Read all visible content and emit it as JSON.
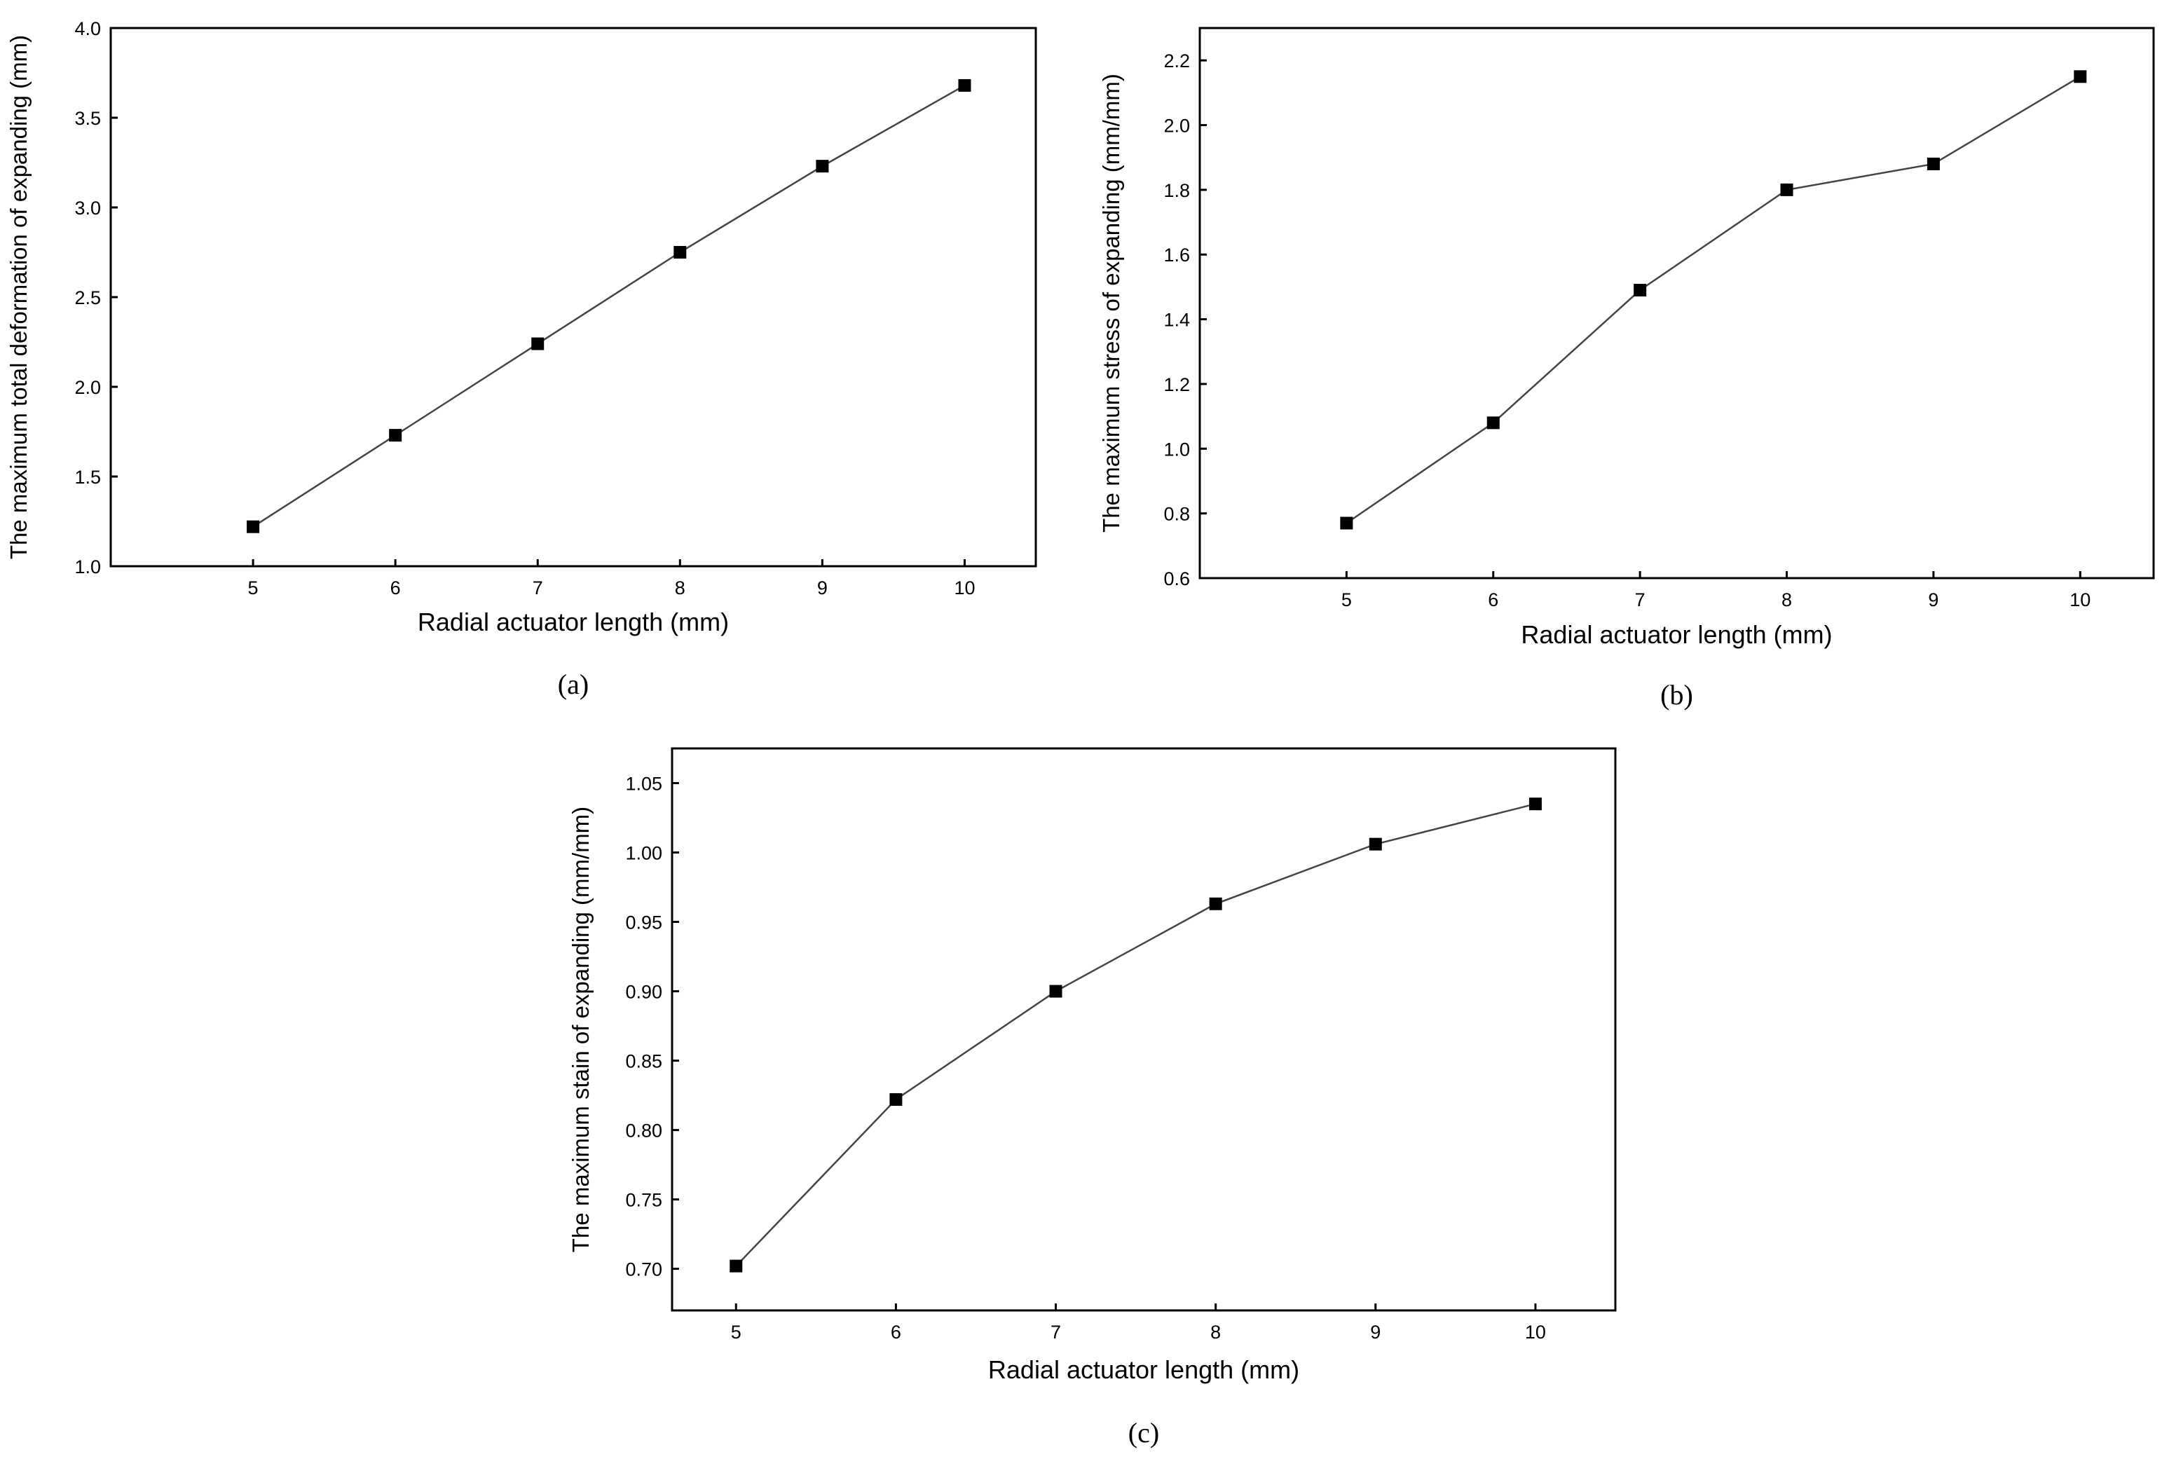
{
  "chart_data": [
    {
      "type": "line",
      "panel_label": "(a)",
      "xlabel": "Radial actuator length (mm)",
      "ylabel": "The maximum total deformation of  expanding (mm)",
      "x": [
        5,
        6,
        7,
        8,
        9,
        10
      ],
      "xlim": [
        4,
        10.5
      ],
      "xticks": [
        5,
        6,
        7,
        8,
        9,
        10
      ],
      "xtick_labels": [
        "5",
        "6",
        "7",
        "8",
        "9",
        "10"
      ],
      "ylim": [
        1.0,
        4.0
      ],
      "yticks": [
        1.0,
        1.5,
        2.0,
        2.5,
        3.0,
        3.5,
        4.0
      ],
      "ytick_labels": [
        "1.0",
        "1.5",
        "2.0",
        "2.5",
        "3.0",
        "3.5",
        "4.0"
      ],
      "grid": false,
      "marker": "square",
      "series": [
        {
          "values": [
            1.22,
            1.73,
            2.24,
            2.75,
            3.23,
            3.68
          ]
        }
      ]
    },
    {
      "type": "line",
      "panel_label": "(b)",
      "xlabel": "Radial actuator length (mm)",
      "ylabel": "The maximum stress of expanding (mm/mm)",
      "x": [
        5,
        6,
        7,
        8,
        9,
        10
      ],
      "xlim": [
        4,
        10.5
      ],
      "xticks": [
        5,
        6,
        7,
        8,
        9,
        10
      ],
      "xtick_labels": [
        "5",
        "6",
        "7",
        "8",
        "9",
        "10"
      ],
      "ylim": [
        0.6,
        2.3
      ],
      "yticks": [
        0.6,
        0.8,
        1.0,
        1.2,
        1.4,
        1.6,
        1.8,
        2.0,
        2.2
      ],
      "ytick_labels": [
        "0.6",
        "0.8",
        "1.0",
        "1.2",
        "1.4",
        "1.6",
        "1.8",
        "2.0",
        "2.2"
      ],
      "grid": false,
      "marker": "square",
      "series": [
        {
          "values": [
            0.77,
            1.08,
            1.49,
            1.8,
            1.88,
            2.15
          ]
        }
      ]
    },
    {
      "type": "line",
      "panel_label": "(c)",
      "xlabel": "Radial actuator length (mm)",
      "ylabel": "The maximum stain of expanding (mm/mm)",
      "x": [
        5,
        6,
        7,
        8,
        9,
        10
      ],
      "xlim": [
        4.6,
        10.5
      ],
      "xticks": [
        5,
        6,
        7,
        8,
        9,
        10
      ],
      "xtick_labels": [
        "5",
        "6",
        "7",
        "8",
        "9",
        "10"
      ],
      "ylim": [
        0.67,
        1.075
      ],
      "yticks": [
        0.7,
        0.75,
        0.8,
        0.85,
        0.9,
        0.95,
        1.0,
        1.05
      ],
      "ytick_labels": [
        "0.70",
        "0.75",
        "0.80",
        "0.85",
        "0.90",
        "0.95",
        "1.00",
        "1.05"
      ],
      "grid": false,
      "marker": "square",
      "series": [
        {
          "values": [
            0.702,
            0.822,
            0.9,
            0.963,
            1.006,
            1.035
          ]
        }
      ]
    }
  ]
}
